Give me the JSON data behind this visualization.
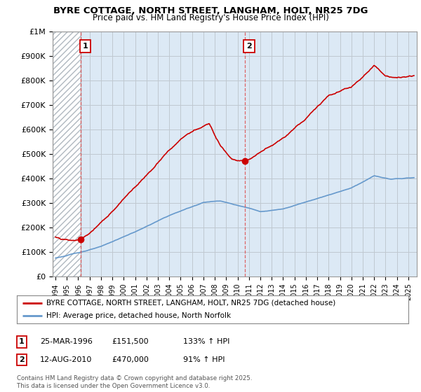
{
  "title": "BYRE COTTAGE, NORTH STREET, LANGHAM, HOLT, NR25 7DG",
  "subtitle": "Price paid vs. HM Land Registry's House Price Index (HPI)",
  "ylim": [
    0,
    1000000
  ],
  "yticks": [
    0,
    100000,
    200000,
    300000,
    400000,
    500000,
    600000,
    700000,
    800000,
    900000,
    1000000
  ],
  "ytick_labels": [
    "£0",
    "£100K",
    "£200K",
    "£300K",
    "£400K",
    "£500K",
    "£600K",
    "£700K",
    "£800K",
    "£900K",
    "£1M"
  ],
  "sale1_year": 1996.23,
  "sale1_price": 151500,
  "sale2_year": 2010.62,
  "sale2_price": 470000,
  "house_color": "#cc0000",
  "hpi_color": "#6699cc",
  "background_color": "#ffffff",
  "plot_bg_color": "#dce9f5",
  "hatch_color": "#b0b8c0",
  "grid_color": "#c0c8d0",
  "legend_house": "BYRE COTTAGE, NORTH STREET, LANGHAM, HOLT, NR25 7DG (detached house)",
  "legend_hpi": "HPI: Average price, detached house, North Norfolk",
  "note1_date": "25-MAR-1996",
  "note1_price": "£151,500",
  "note1_hpi": "133% ↑ HPI",
  "note2_date": "12-AUG-2010",
  "note2_price": "£470,000",
  "note2_hpi": "91% ↑ HPI",
  "copyright": "Contains HM Land Registry data © Crown copyright and database right 2025.\nThis data is licensed under the Open Government Licence v3.0.",
  "xmin": 1993.75,
  "xmax": 2025.75
}
